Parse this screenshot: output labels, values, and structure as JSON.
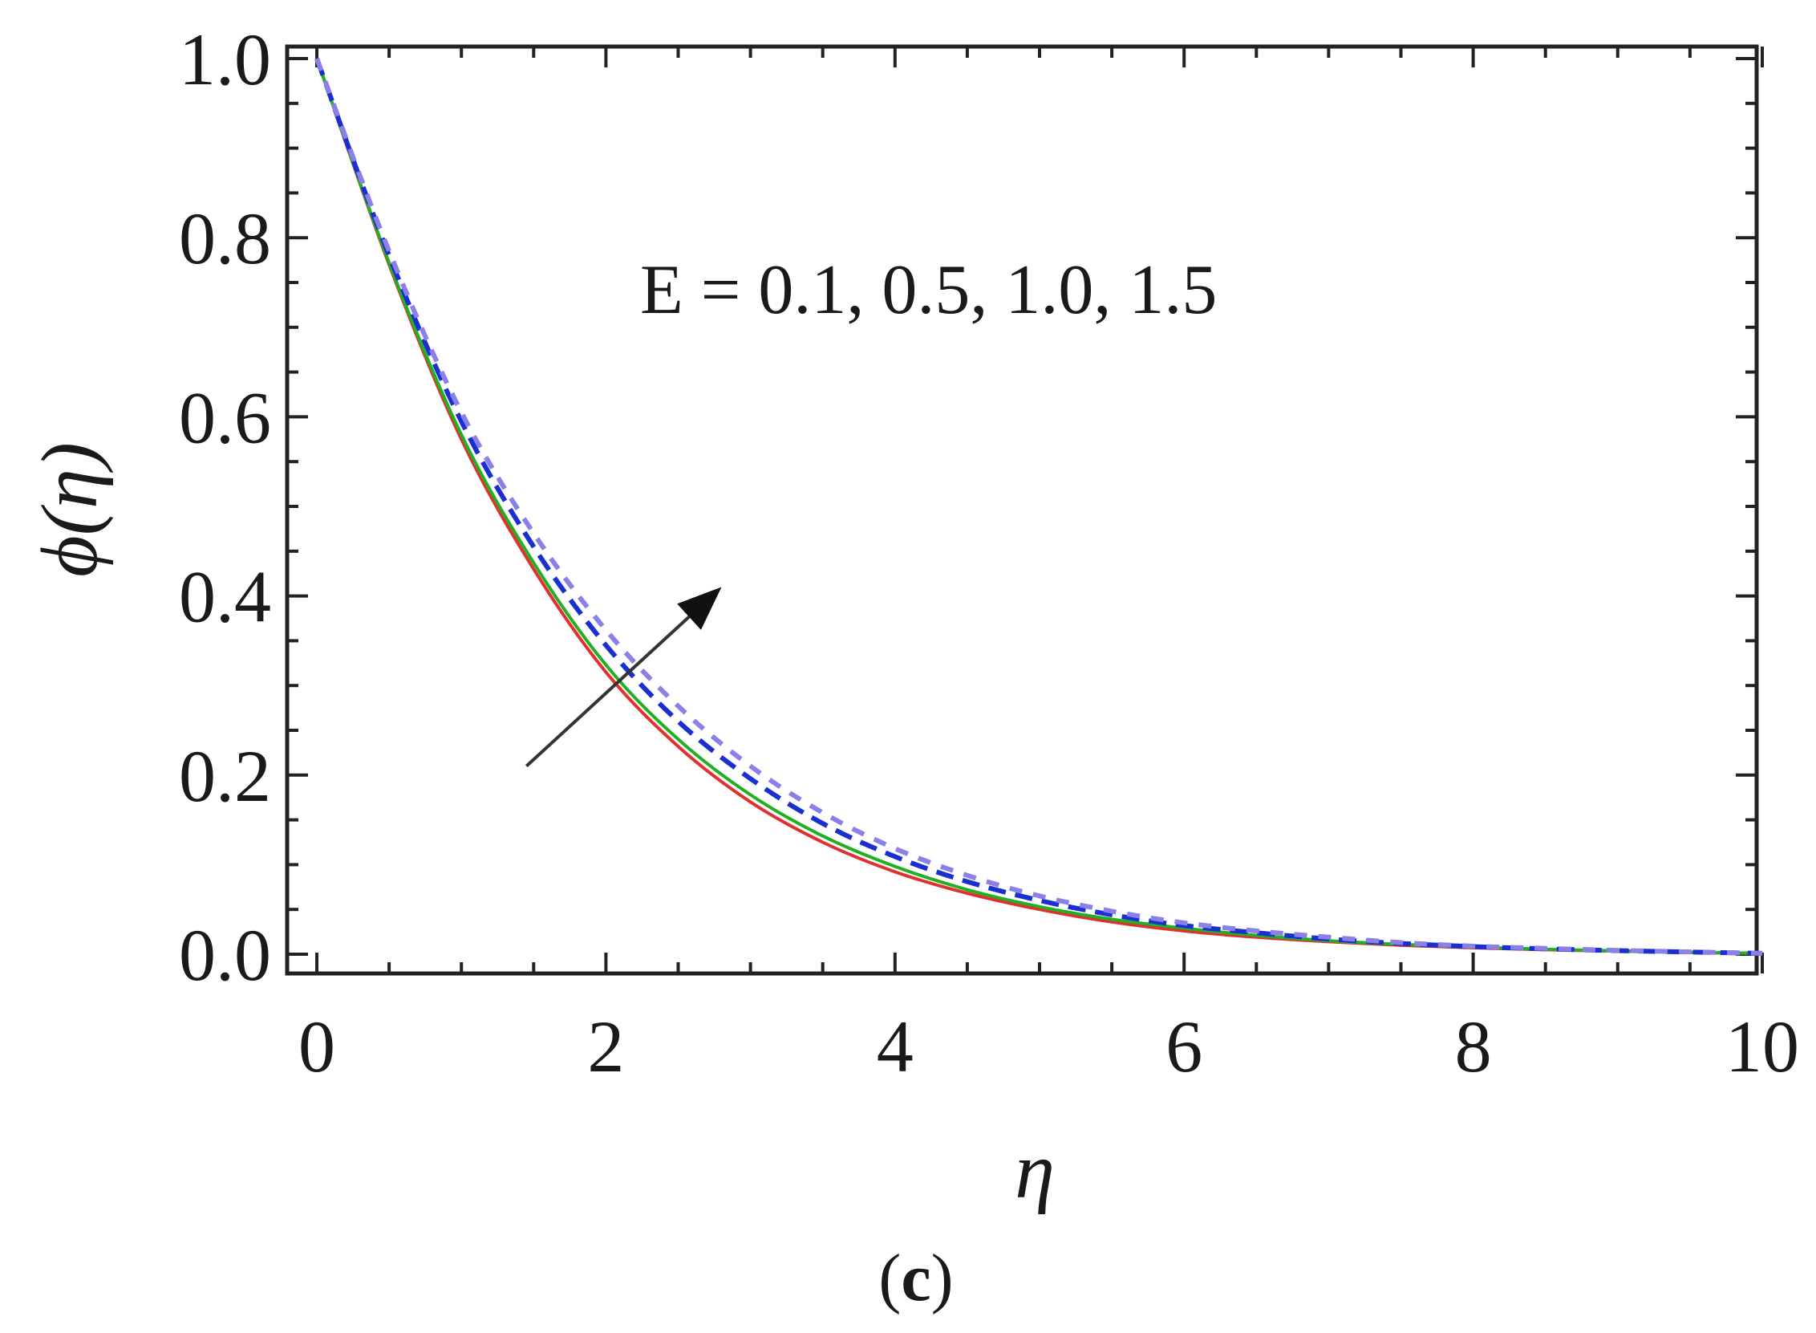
{
  "chart_data": {
    "type": "line",
    "xlabel": "η",
    "ylabel": "ϕ(η)",
    "xlim": [
      0,
      10
    ],
    "ylim": [
      0,
      1
    ],
    "xticks": [
      "0",
      "2",
      "4",
      "6",
      "8",
      "10"
    ],
    "yticks": [
      "0.0",
      "0.2",
      "0.4",
      "0.6",
      "0.8",
      "1.0"
    ],
    "annotation": "E = 0.1, 0.5, 1.0, 1.5",
    "panel_label": {
      "open": "(",
      "letter": "c",
      "close": ")"
    },
    "grid": false,
    "arrow": {
      "from": [
        1.45,
        0.21
      ],
      "to": [
        2.8,
        0.41
      ]
    },
    "x": [
      0,
      0.5,
      1,
      1.5,
      2,
      2.5,
      3,
      3.5,
      4,
      4.5,
      5,
      5.5,
      6,
      6.5,
      7,
      7.5,
      8,
      8.5,
      9,
      9.5,
      10
    ],
    "series": [
      {
        "color": "#e03030",
        "style": "solid",
        "values": [
          1.0,
          0.77,
          0.575,
          0.43,
          0.315,
          0.232,
          0.17,
          0.125,
          0.092,
          0.068,
          0.05,
          0.036,
          0.026,
          0.019,
          0.014,
          0.01,
          0.0072,
          0.005,
          0.0035,
          0.002,
          0.001
        ]
      },
      {
        "color": "#22b022",
        "style": "solid",
        "values": [
          1.0,
          0.772,
          0.58,
          0.437,
          0.323,
          0.24,
          0.178,
          0.132,
          0.098,
          0.072,
          0.053,
          0.039,
          0.029,
          0.021,
          0.015,
          0.011,
          0.008,
          0.0055,
          0.0038,
          0.0022,
          0.001
        ]
      },
      {
        "color": "#1a2fd0",
        "style": "dashed",
        "values": [
          1.0,
          0.78,
          0.595,
          0.455,
          0.345,
          0.26,
          0.196,
          0.146,
          0.109,
          0.081,
          0.06,
          0.044,
          0.032,
          0.024,
          0.017,
          0.012,
          0.0085,
          0.006,
          0.004,
          0.0024,
          0.001
        ]
      },
      {
        "color": "#8a80e8",
        "style": "dashed",
        "values": [
          1.0,
          0.785,
          0.605,
          0.47,
          0.362,
          0.277,
          0.21,
          0.158,
          0.118,
          0.088,
          0.065,
          0.048,
          0.035,
          0.026,
          0.019,
          0.013,
          0.009,
          0.0065,
          0.0043,
          0.0026,
          0.001
        ]
      }
    ]
  }
}
